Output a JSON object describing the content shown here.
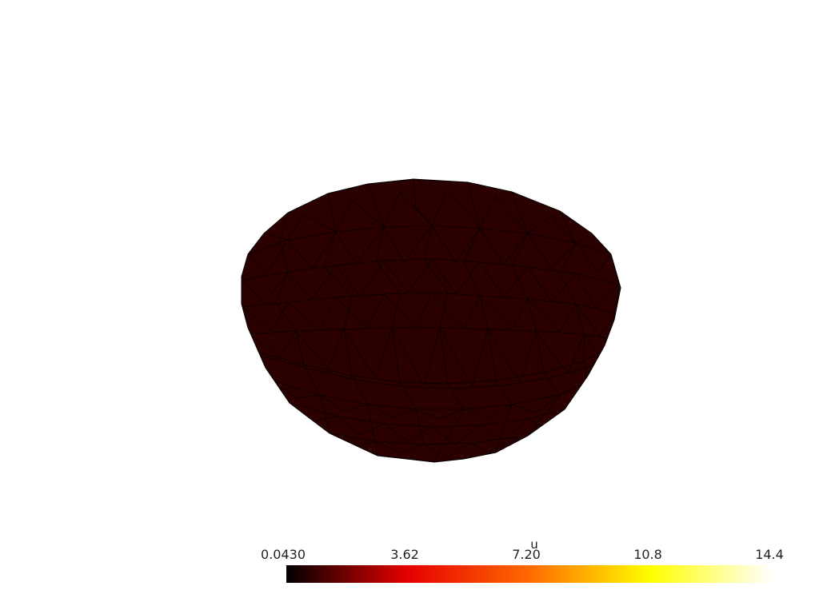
{
  "scene": {
    "object": "mesh",
    "surface_color": "#2a0000",
    "edge_color": "#000000",
    "background": "#ffffff"
  },
  "scalar_bar": {
    "title": "u",
    "ticks": [
      "0.0430",
      "3.62",
      "7.20",
      "10.8",
      "14.4"
    ],
    "range": [
      0.043,
      14.4
    ],
    "colormap": "hot",
    "colormap_stops": [
      "#000000",
      "#e60000",
      "#ff6a00",
      "#ffff00",
      "#ffffff"
    ]
  }
}
